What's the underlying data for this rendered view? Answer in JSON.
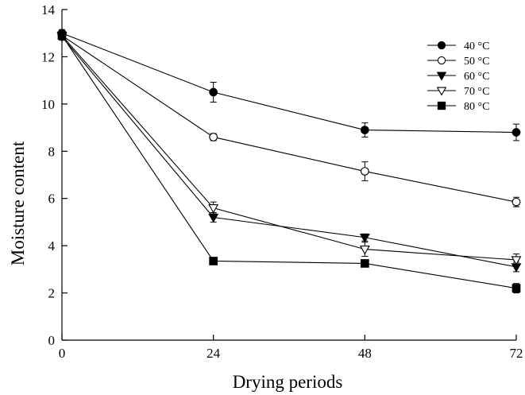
{
  "chart_data": {
    "type": "line",
    "xlabel": "Drying periods",
    "ylabel": "Moisture content",
    "x": [
      0,
      24,
      48,
      72
    ],
    "xticks": [
      "0",
      "24",
      "48",
      "72"
    ],
    "yticks": [
      "0",
      "2",
      "4",
      "6",
      "8",
      "10",
      "12",
      "14"
    ],
    "xlim": [
      0,
      72
    ],
    "ylim": [
      0,
      14
    ],
    "grid": false,
    "legend_position": "top-right",
    "series": [
      {
        "name": "40 °C",
        "marker": "circle-filled",
        "values": [
          13.0,
          10.5,
          8.9,
          8.8
        ],
        "errors": [
          0.15,
          0.42,
          0.3,
          0.35
        ]
      },
      {
        "name": "50 °C",
        "marker": "circle-open",
        "values": [
          12.9,
          8.6,
          7.15,
          5.85
        ],
        "errors": [
          0.15,
          0.15,
          0.4,
          0.2
        ]
      },
      {
        "name": "60 °C",
        "marker": "triangle-down-filled",
        "values": [
          12.85,
          5.2,
          4.35,
          3.1
        ],
        "errors": [
          0.15,
          0.2,
          0.15,
          0.2
        ]
      },
      {
        "name": "70 °C",
        "marker": "triangle-down-open",
        "values": [
          12.9,
          5.6,
          3.85,
          3.4
        ],
        "errors": [
          0.15,
          0.25,
          0.3,
          0.25
        ]
      },
      {
        "name": "80 °C",
        "marker": "square-filled",
        "values": [
          12.9,
          3.35,
          3.25,
          2.2
        ],
        "errors": [
          0.15,
          0.15,
          0.1,
          0.2
        ]
      }
    ]
  }
}
